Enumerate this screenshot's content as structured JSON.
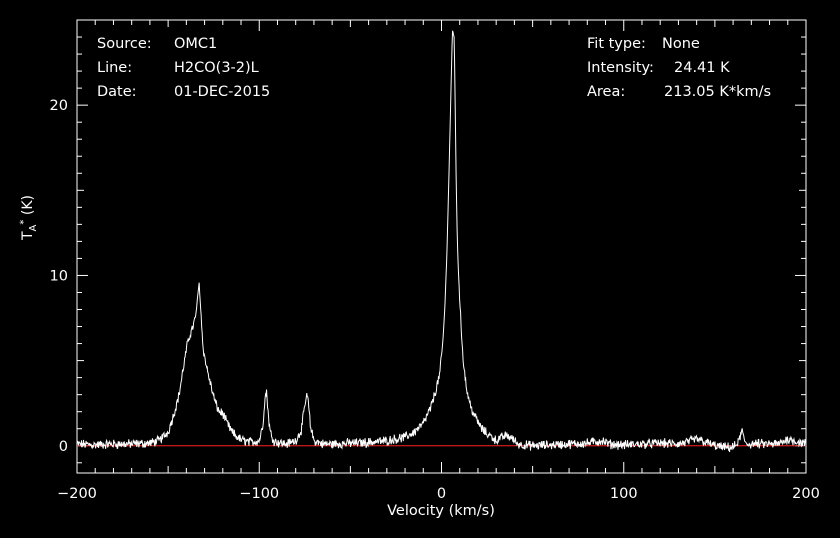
{
  "header": {
    "source_label": "Source:",
    "source_value": "OMC1",
    "line_label": "Line:",
    "line_value": "H2CO(3-2)L",
    "date_label": "Date:",
    "date_value": "01-DEC-2015",
    "fit_label": "Fit type:",
    "fit_value": "None",
    "intensity_label": "Intensity:",
    "intensity_value": "24.41 K",
    "area_label": "Area:",
    "area_value": "213.05 K*km/s"
  },
  "chart_data": {
    "type": "line",
    "xlabel": "Velocity (km/s)",
    "ylabel": "TA* (K)",
    "xlim": [
      -200,
      200
    ],
    "ylim": [
      -1.6,
      25
    ],
    "xticks": [
      -200,
      -100,
      0,
      100,
      200
    ],
    "yticks": [
      0,
      10,
      20
    ],
    "grid": false,
    "colors": {
      "background": "#000000",
      "spectrum": "#ffffff",
      "baseline": "#ff2020",
      "frame": "#ffffff"
    },
    "series": [
      {
        "x": [
          -200,
          -190,
          -180,
          -170,
          -160,
          -155,
          -150,
          -147,
          -144,
          -141,
          -139,
          -137,
          -135,
          -134,
          -133,
          -132,
          -131,
          -130,
          -128,
          -126,
          -124,
          -122,
          -120,
          -118,
          -115,
          -112,
          -110,
          -105,
          -100,
          -98,
          -97,
          -96,
          -95,
          -94,
          -92,
          -90,
          -85,
          -80,
          -77,
          -75,
          -74,
          -73,
          -72,
          -70,
          -65,
          -60,
          -50,
          -40,
          -30,
          -20,
          -15,
          -10,
          -6,
          -3,
          -1,
          0,
          1,
          2,
          3,
          4,
          5,
          6,
          7,
          7.5,
          8,
          8.5,
          9,
          10,
          11,
          12,
          13,
          14,
          16,
          18,
          20,
          22,
          25,
          28,
          30,
          35,
          38,
          40,
          42,
          45,
          50,
          60,
          70,
          80,
          88,
          90,
          92,
          100,
          110,
          120,
          130,
          138,
          140,
          145,
          150,
          155,
          160,
          163,
          164,
          165,
          166,
          168,
          175,
          185,
          190,
          200
        ],
        "y": [
          0.1,
          0.05,
          0.1,
          0.1,
          0.15,
          0.3,
          0.8,
          1.8,
          3.0,
          5.0,
          6.2,
          6.8,
          7.5,
          8.5,
          9.6,
          7.8,
          6.0,
          5.2,
          4.2,
          3.3,
          2.5,
          2.0,
          1.9,
          1.4,
          0.8,
          0.5,
          0.35,
          0.2,
          0.3,
          1.2,
          2.7,
          3.2,
          1.8,
          0.8,
          0.3,
          0.2,
          0.1,
          0.3,
          0.9,
          2.3,
          3.0,
          2.5,
          1.2,
          0.3,
          0.1,
          0.1,
          0.15,
          0.2,
          0.3,
          0.5,
          0.8,
          1.3,
          2.2,
          3.3,
          4.2,
          5.2,
          6.5,
          8.5,
          11.5,
          15.5,
          20.0,
          24.4,
          24.0,
          20.0,
          16.0,
          13.0,
          11.0,
          8.5,
          6.5,
          5.0,
          4.0,
          3.2,
          2.3,
          1.8,
          1.4,
          1.0,
          0.7,
          0.5,
          0.3,
          0.6,
          0.5,
          0.3,
          0.1,
          0.05,
          0.0,
          0.05,
          0.1,
          0.15,
          0.3,
          0.2,
          0.1,
          0.05,
          0.1,
          0.15,
          0.1,
          0.3,
          0.4,
          0.2,
          0.0,
          -0.1,
          -0.1,
          0.2,
          0.6,
          0.9,
          0.3,
          0.1,
          0.1,
          0.1,
          0.4,
          0.1
        ]
      }
    ]
  }
}
